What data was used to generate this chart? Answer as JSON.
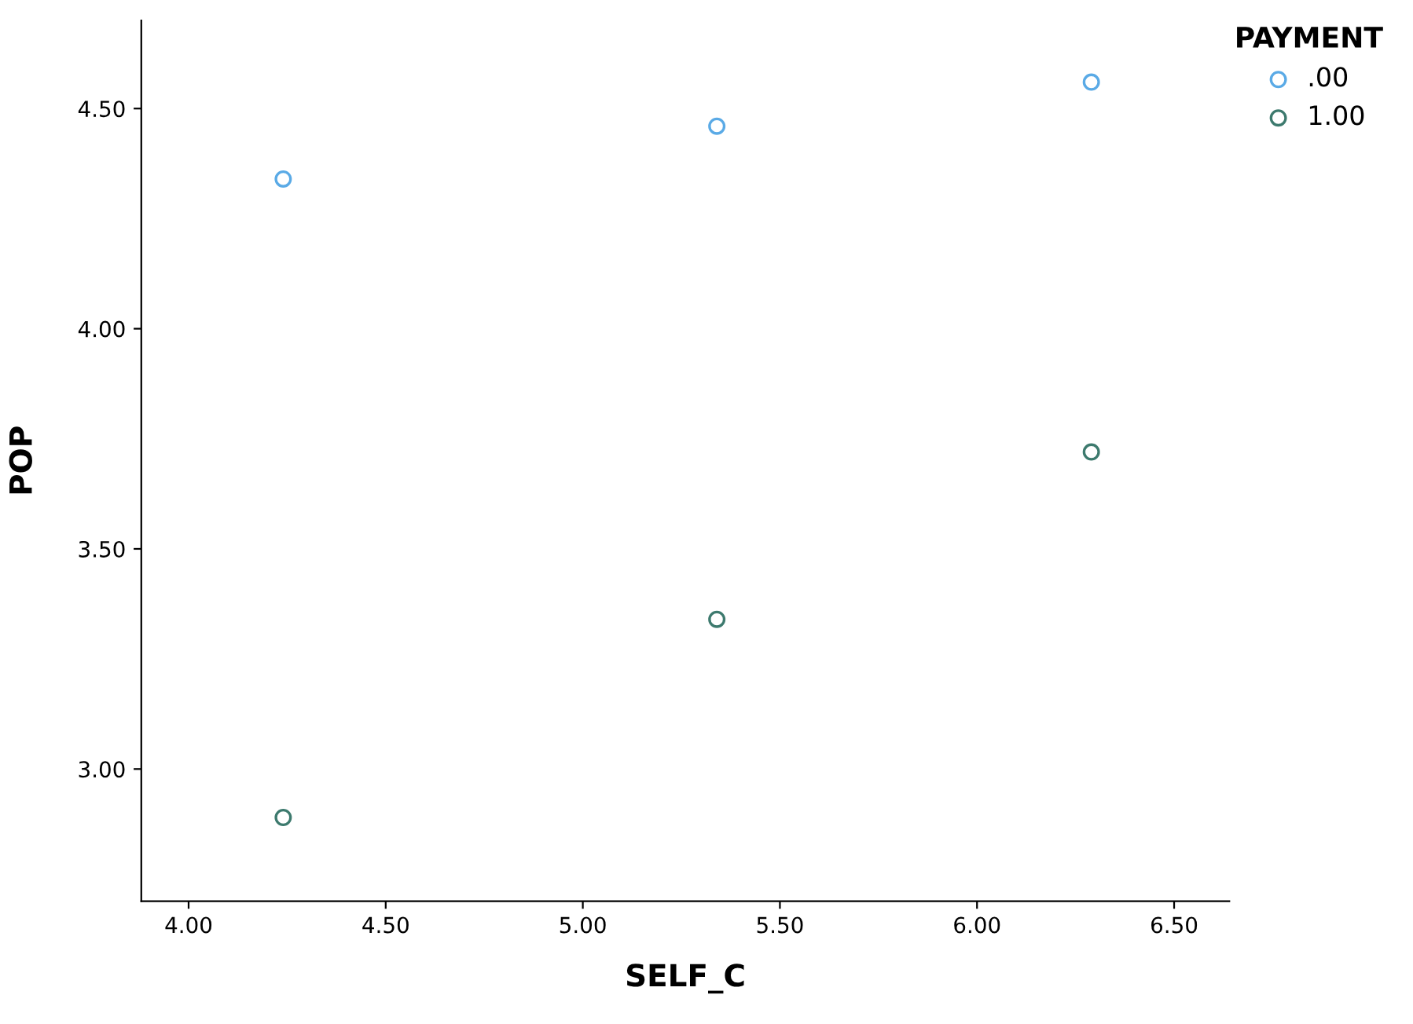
{
  "chart_data": {
    "type": "scatter",
    "xlabel": "SELF_C",
    "ylabel": "POP",
    "legend_title": "PAYMENT",
    "legend": "top right",
    "marker": "circle",
    "grid": false,
    "xlim": [
      3.88,
      6.64
    ],
    "xticks": [
      {
        "value": 4,
        "label": "4.00"
      },
      {
        "value": 4.5,
        "label": "4.50"
      },
      {
        "value": 5,
        "label": "5.00"
      },
      {
        "value": 5.5,
        "label": "5.50"
      },
      {
        "value": 6,
        "label": "6.00"
      },
      {
        "value": 6.5,
        "label": "6.50"
      }
    ],
    "ylim": [
      2.7,
      4.7
    ],
    "yticks": [
      {
        "value": 3,
        "label": "3.00"
      },
      {
        "value": 3.5,
        "label": "3.50"
      },
      {
        "value": 4,
        "label": "4.00"
      },
      {
        "value": 4.5,
        "label": "4.50"
      }
    ],
    "series": [
      {
        "name": ".00",
        "color": "#5aaae6",
        "x": [
          4.24,
          5.34,
          6.29
        ],
        "values": [
          4.34,
          4.46,
          4.56
        ]
      },
      {
        "name": "1.00",
        "color": "#3d7a6e",
        "x": [
          4.24,
          5.34,
          6.29
        ],
        "values": [
          2.89,
          3.34,
          3.72
        ]
      }
    ]
  }
}
